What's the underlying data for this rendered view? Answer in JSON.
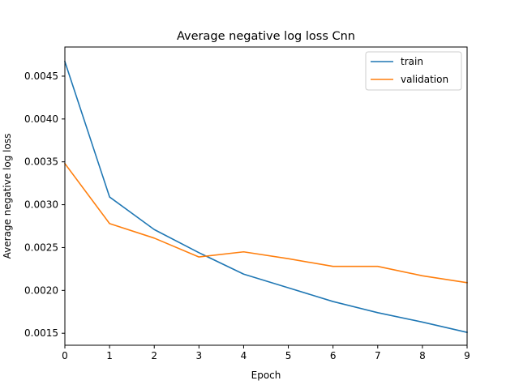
{
  "chart_data": {
    "type": "line",
    "title": "Average negative log loss Cnn",
    "xlabel": "Epoch",
    "ylabel": "Average negative log loss",
    "x": [
      0,
      1,
      2,
      3,
      4,
      5,
      6,
      7,
      8,
      9
    ],
    "xlim": [
      0,
      9
    ],
    "ylim": [
      0.00136,
      0.00484
    ],
    "xticks": [
      0,
      1,
      2,
      3,
      4,
      5,
      6,
      7,
      8,
      9
    ],
    "xtick_labels": [
      "0",
      "1",
      "2",
      "3",
      "4",
      "5",
      "6",
      "7",
      "8",
      "9"
    ],
    "yticks": [
      0.0015,
      0.002,
      0.0025,
      0.003,
      0.0035,
      0.004,
      0.0045
    ],
    "ytick_labels": [
      "0.0015",
      "0.0020",
      "0.0025",
      "0.0030",
      "0.0035",
      "0.0040",
      "0.0045"
    ],
    "grid": false,
    "legend_position": "top-right",
    "series": [
      {
        "name": "train",
        "color": "#1f77b4",
        "values": [
          0.00467,
          0.00309,
          0.00271,
          0.00244,
          0.00219,
          0.00203,
          0.00187,
          0.00174,
          0.00163,
          0.00151
        ]
      },
      {
        "name": "validation",
        "color": "#ff7f0e",
        "values": [
          0.00348,
          0.00278,
          0.00261,
          0.00239,
          0.00245,
          0.00237,
          0.00228,
          0.00228,
          0.00217,
          0.00209
        ]
      }
    ]
  }
}
